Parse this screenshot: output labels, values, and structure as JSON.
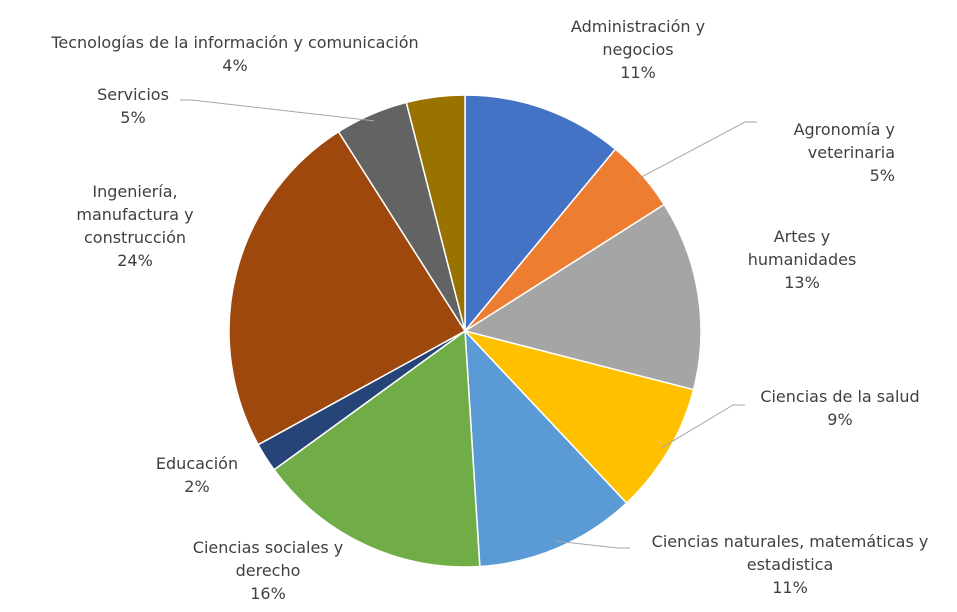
{
  "chart_data": {
    "type": "pie",
    "categories": [
      "Administración y negocios",
      "Agronomía y veterinaria",
      "Artes y humanidades",
      "Ciencias de la salud",
      "Ciencias naturales, matemáticas y estadistica",
      "Ciencias sociales y derecho",
      "Educación",
      "Ingeniería, manufactura y construcción",
      "Servicios",
      "Tecnologías de la información y comunicación"
    ],
    "values": [
      11,
      5,
      13,
      9,
      11,
      16,
      2,
      24,
      5,
      4
    ],
    "value_labels": [
      "11%",
      "5%",
      "13%",
      "9%",
      "11%",
      "16%",
      "2%",
      "24%",
      "5%",
      "4%"
    ],
    "colors": [
      "#4472c4",
      "#ed7d31",
      "#a5a5a5",
      "#ffc000",
      "#5b9bd5",
      "#70ad47",
      "#264478",
      "#9e480e",
      "#636363",
      "#997300"
    ]
  }
}
